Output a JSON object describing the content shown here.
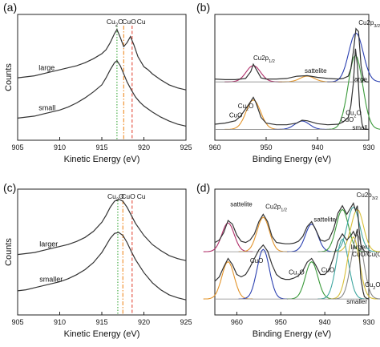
{
  "figure": {
    "panels": [
      "(a)",
      "(b)",
      "(c)",
      "(d)"
    ]
  },
  "colors": {
    "line": "#333333",
    "dotted_green": "#39a839",
    "dashdot_orange": "#f08a24",
    "dashed_red": "#e34a3a",
    "fit_purple": "#b0306a",
    "fit_blue": "#2a3fb0",
    "fit_orange": "#e3942a",
    "fit_green": "#3a9a3a",
    "fit_teal": "#3fa6a0",
    "fit_yellow": "#d8c03a",
    "fit_gray": "#8a8a8a"
  },
  "chart_data": [
    {
      "id": "a",
      "type": "line",
      "panel_label": "(a)",
      "xlabel": "Kinetic Energy (eV)",
      "ylabel": "Counts",
      "xlim": [
        905,
        925
      ],
      "x_ticks": [
        "905",
        "910",
        "915",
        "920",
        "925"
      ],
      "reference_lines": [
        {
          "label": "Cu2O",
          "label_main": "Cu",
          "label_sub": "2",
          "label_tail": "O",
          "x": 916.8,
          "style": "dotted",
          "color": "#39a839"
        },
        {
          "label": "CuO",
          "label_main": "CuO",
          "label_sub": "",
          "label_tail": "",
          "x": 917.6,
          "style": "dashdot",
          "color": "#f08a24"
        },
        {
          "label": "Cu",
          "label_main": "Cu",
          "label_sub": "",
          "label_tail": "",
          "x": 918.6,
          "style": "dashed",
          "color": "#e34a3a"
        }
      ],
      "series": [
        {
          "name": "large",
          "x": [
            905,
            906,
            907,
            908,
            909,
            910,
            911,
            912,
            913,
            914,
            915,
            915.5,
            916,
            916.5,
            916.8,
            917.2,
            917.6,
            918,
            918.4,
            918.8,
            919.3,
            920,
            920.5,
            921,
            922,
            923,
            924,
            925
          ],
          "y": [
            0.62,
            0.63,
            0.64,
            0.66,
            0.68,
            0.7,
            0.72,
            0.74,
            0.77,
            0.81,
            0.86,
            0.9,
            0.97,
            1.06,
            1.1,
            1.02,
            0.93,
            0.97,
            1.03,
            0.95,
            0.83,
            0.73,
            0.7,
            0.66,
            0.6,
            0.55,
            0.52,
            0.5
          ]
        },
        {
          "name": "small",
          "x": [
            905,
            906,
            907,
            908,
            909,
            910,
            911,
            912,
            913,
            914,
            915,
            915.5,
            916,
            916.5,
            916.8,
            917.2,
            917.6,
            918,
            918.5,
            919,
            919.5,
            920,
            921,
            922,
            923,
            924,
            925
          ],
          "y": [
            0.22,
            0.23,
            0.24,
            0.26,
            0.28,
            0.3,
            0.33,
            0.37,
            0.42,
            0.48,
            0.55,
            0.62,
            0.7,
            0.77,
            0.79,
            0.74,
            0.66,
            0.58,
            0.5,
            0.43,
            0.38,
            0.34,
            0.28,
            0.23,
            0.19,
            0.16,
            0.14
          ]
        }
      ]
    },
    {
      "id": "b",
      "type": "line",
      "panel_label": "(b)",
      "xlabel": "Binding Energy (eV)",
      "ylabel": "",
      "xlim": [
        960,
        930
      ],
      "x_ticks": [
        "960",
        "950",
        "940",
        "930"
      ],
      "annotations": [
        {
          "main": "Cu2p",
          "sub": "1/2",
          "x": 952.5,
          "y": 1.4
        },
        {
          "main": "Cu2p",
          "sub": "3/2",
          "x": 932.0,
          "y": 2.02
        },
        {
          "main": "sattelite",
          "sub": "",
          "x": 942.5,
          "y": 1.18
        },
        {
          "main": "large",
          "sub": "",
          "x": 930.2,
          "y": 1.03
        },
        {
          "main": "Cu",
          "sub": "2",
          "tail": "O",
          "x": 955.5,
          "y": 0.56
        },
        {
          "main": "CuO",
          "sub": "",
          "x": 957.2,
          "y": 0.4
        },
        {
          "main": "Cu",
          "sub": "2",
          "tail": "O",
          "x": 934.5,
          "y": 0.44
        },
        {
          "main": "CuO",
          "sub": "",
          "x": 935.5,
          "y": 0.32
        },
        {
          "main": "small",
          "sub": "",
          "x": 930.8,
          "y": 0.18
        }
      ],
      "series": [
        {
          "name": "large",
          "x": [
            960,
            958,
            956,
            954,
            953,
            952.5,
            952,
            951,
            950,
            948,
            946,
            944,
            942,
            940,
            938,
            936,
            935,
            934,
            933.5,
            933,
            932.5,
            932,
            931.5,
            931,
            930.5,
            930
          ],
          "y": [
            1.07,
            1.06,
            1.06,
            1.08,
            1.2,
            1.33,
            1.25,
            1.09,
            1.07,
            1.07,
            1.08,
            1.12,
            1.13,
            1.1,
            1.08,
            1.07,
            1.08,
            1.12,
            1.25,
            1.55,
            1.95,
            1.9,
            1.3,
            1.05,
            1.02,
            1.02
          ]
        },
        {
          "name": "small",
          "x": [
            960,
            958,
            956,
            955,
            954,
            953,
            952.5,
            952,
            951,
            950,
            948,
            946,
            944,
            943,
            942,
            940,
            938,
            936,
            935,
            934,
            933.5,
            933,
            932.6,
            932.2,
            931.8,
            931.3,
            931,
            930.5,
            930
          ],
          "y": [
            0.28,
            0.3,
            0.34,
            0.42,
            0.55,
            0.68,
            0.75,
            0.66,
            0.4,
            0.3,
            0.27,
            0.27,
            0.3,
            0.35,
            0.34,
            0.29,
            0.27,
            0.28,
            0.32,
            0.4,
            0.6,
            1.0,
            1.6,
            1.3,
            0.6,
            0.28,
            0.2,
            0.19,
            0.19
          ]
        }
      ]
    },
    {
      "id": "c",
      "type": "line",
      "panel_label": "(c)",
      "xlabel": "Kinetic Energy (eV)",
      "ylabel": "Counts",
      "xlim": [
        905,
        925
      ],
      "x_ticks": [
        "905",
        "910",
        "915",
        "920",
        "925"
      ],
      "reference_lines": [
        {
          "label": "Cu2O",
          "label_main": "Cu",
          "label_sub": "2",
          "label_tail": "O",
          "x": 916.9,
          "style": "dotted",
          "color": "#39a839"
        },
        {
          "label": "CuO",
          "label_main": "CuO",
          "label_sub": "",
          "label_tail": "",
          "x": 917.5,
          "style": "dashdot",
          "color": "#f08a24"
        },
        {
          "label": "Cu",
          "label_main": "Cu",
          "label_sub": "",
          "label_tail": "",
          "x": 918.6,
          "style": "dashed",
          "color": "#e34a3a"
        }
      ],
      "series": [
        {
          "name": "larger",
          "x": [
            905,
            906,
            907,
            908,
            909,
            910,
            911,
            912,
            913,
            914,
            915,
            915.5,
            916,
            916.5,
            917,
            917.5,
            918,
            918.5,
            919,
            920,
            921,
            922,
            923,
            924,
            925
          ],
          "y": [
            0.6,
            0.61,
            0.62,
            0.64,
            0.66,
            0.68,
            0.7,
            0.73,
            0.77,
            0.83,
            0.92,
            0.99,
            1.07,
            1.13,
            1.15,
            1.13,
            1.07,
            0.99,
            0.91,
            0.79,
            0.7,
            0.64,
            0.59,
            0.56,
            0.54
          ]
        },
        {
          "name": "smaller",
          "x": [
            905,
            906,
            907,
            908,
            909,
            910,
            911,
            912,
            913,
            914,
            915,
            915.5,
            916,
            916.5,
            917,
            917.5,
            918,
            918.5,
            919,
            920,
            921,
            922,
            923,
            924,
            925
          ],
          "y": [
            0.24,
            0.25,
            0.27,
            0.29,
            0.31,
            0.33,
            0.36,
            0.4,
            0.45,
            0.52,
            0.62,
            0.69,
            0.76,
            0.81,
            0.82,
            0.79,
            0.72,
            0.63,
            0.55,
            0.42,
            0.32,
            0.25,
            0.2,
            0.17,
            0.15
          ]
        }
      ]
    },
    {
      "id": "d",
      "type": "line",
      "panel_label": "(d)",
      "xlabel": "Binding Energy (eV)",
      "ylabel": "",
      "xlim": [
        965,
        930
      ],
      "x_ticks": [
        "960",
        "950",
        "940",
        "930"
      ],
      "annotations": [
        {
          "main": "sattelite",
          "sub": "",
          "x": 961.5,
          "y": 1.77
        },
        {
          "main": "Cu2p",
          "sub": "1/2",
          "x": 953.5,
          "y": 1.73
        },
        {
          "main": "sattelite",
          "sub": "",
          "x": 942.5,
          "y": 1.52
        },
        {
          "main": "Cu2p",
          "sub": "3/2",
          "x": 932.8,
          "y": 1.92
        },
        {
          "main": "larger",
          "sub": "",
          "x": 930.6,
          "y": 1.07
        },
        {
          "main": "CuO",
          "sub": "",
          "x": 957.0,
          "y": 0.85
        },
        {
          "main": "Cu",
          "sub": "2",
          "tail": "O",
          "x": 948.2,
          "y": 0.66
        },
        {
          "main": "CuO",
          "sub": "",
          "x": 940.8,
          "y": 0.7
        },
        {
          "main": "CuO/Cu(OH)",
          "sub": "2",
          "x": 933.8,
          "y": 0.95
        },
        {
          "main": "Cu",
          "sub": "2",
          "tail": "O",
          "x": 930.9,
          "y": 0.46
        },
        {
          "main": "smaller",
          "sub": "",
          "x": 930.3,
          "y": 0.18
        }
      ],
      "series": [
        {
          "name": "larger",
          "x": [
            965,
            964,
            963,
            962,
            961,
            960,
            959,
            958,
            957,
            956,
            955,
            954,
            953,
            952,
            951,
            950,
            949,
            948,
            947,
            946,
            945,
            944,
            943,
            942,
            941,
            940,
            939,
            938,
            937,
            936,
            935,
            934,
            933.5,
            933,
            932.6,
            932.2,
            931.8,
            931.3,
            931,
            930.5,
            930
          ],
          "y": [
            1.18,
            1.22,
            1.34,
            1.54,
            1.48,
            1.3,
            1.2,
            1.18,
            1.22,
            1.32,
            1.52,
            1.64,
            1.52,
            1.28,
            1.18,
            1.17,
            1.16,
            1.16,
            1.17,
            1.2,
            1.28,
            1.44,
            1.52,
            1.38,
            1.22,
            1.2,
            1.24,
            1.4,
            1.66,
            1.78,
            1.64,
            1.76,
            1.82,
            1.7,
            1.78,
            1.4,
            1.15,
            1.07,
            1.04,
            1.03,
            1.03
          ]
        },
        {
          "name": "smaller",
          "x": [
            965,
            964,
            963,
            962,
            961,
            960,
            959,
            958,
            957,
            956,
            955,
            954,
            953,
            952,
            951,
            950,
            949,
            948,
            947,
            946,
            945,
            944,
            943,
            942,
            941,
            940,
            939,
            938,
            937,
            936,
            935,
            934,
            933.5,
            933,
            932.6,
            932.2,
            931.8,
            931.3,
            931,
            930.5,
            930
          ],
          "y": [
            0.55,
            0.62,
            0.78,
            0.92,
            0.82,
            0.66,
            0.62,
            0.66,
            0.78,
            0.92,
            1.06,
            1.14,
            1.04,
            0.82,
            0.66,
            0.6,
            0.58,
            0.58,
            0.6,
            0.64,
            0.72,
            0.86,
            0.92,
            0.8,
            0.66,
            0.66,
            0.74,
            0.94,
            1.2,
            1.32,
            1.22,
            1.3,
            1.36,
            1.28,
            1.4,
            1.05,
            0.6,
            0.38,
            0.3,
            0.27,
            0.26
          ]
        }
      ]
    }
  ]
}
